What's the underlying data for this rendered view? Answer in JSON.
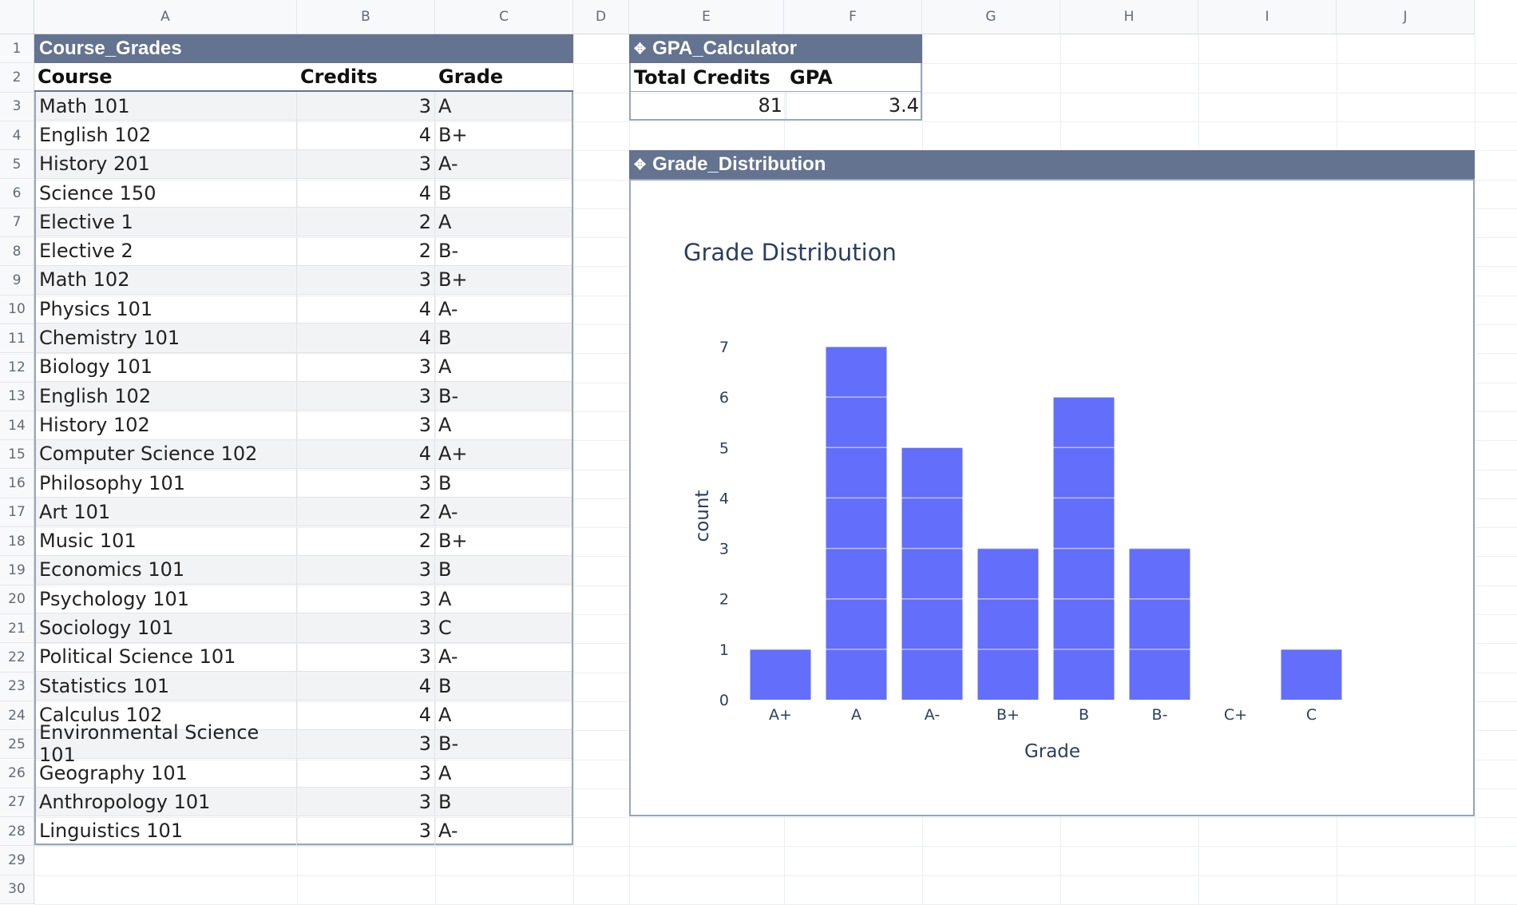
{
  "columns": [
    "A",
    "B",
    "C",
    "D",
    "E",
    "F",
    "G",
    "H",
    "I",
    "J"
  ],
  "rows": [
    "1",
    "2",
    "3",
    "4",
    "5",
    "6",
    "7",
    "8",
    "9",
    "10",
    "11",
    "12",
    "13",
    "14",
    "15",
    "16",
    "17",
    "18",
    "19",
    "20",
    "21",
    "22",
    "23",
    "24",
    "25",
    "26",
    "27",
    "28",
    "29",
    "30"
  ],
  "course_grades": {
    "title": "Course_Grades",
    "headers": {
      "course": "Course",
      "credits": "Credits",
      "grade": "Grade"
    },
    "rows": [
      {
        "course": "Math 101",
        "credits": "3",
        "grade": "A"
      },
      {
        "course": "English 102",
        "credits": "4",
        "grade": "B+"
      },
      {
        "course": "History 201",
        "credits": "3",
        "grade": "A-"
      },
      {
        "course": "Science 150",
        "credits": "4",
        "grade": "B"
      },
      {
        "course": "Elective 1",
        "credits": "2",
        "grade": "A"
      },
      {
        "course": "Elective 2",
        "credits": "2",
        "grade": "B-"
      },
      {
        "course": "Math 102",
        "credits": "3",
        "grade": "B+"
      },
      {
        "course": "Physics 101",
        "credits": "4",
        "grade": "A-"
      },
      {
        "course": "Chemistry 101",
        "credits": "4",
        "grade": "B"
      },
      {
        "course": "Biology 101",
        "credits": "3",
        "grade": "A"
      },
      {
        "course": "English 102",
        "credits": "3",
        "grade": "B-"
      },
      {
        "course": "History 102",
        "credits": "3",
        "grade": "A"
      },
      {
        "course": "Computer Science 102",
        "credits": "4",
        "grade": "A+"
      },
      {
        "course": "Philosophy 101",
        "credits": "3",
        "grade": "B"
      },
      {
        "course": "Art 101",
        "credits": "2",
        "grade": "A-"
      },
      {
        "course": "Music 101",
        "credits": "2",
        "grade": "B+"
      },
      {
        "course": "Economics 101",
        "credits": "3",
        "grade": "B"
      },
      {
        "course": "Psychology 101",
        "credits": "3",
        "grade": "A"
      },
      {
        "course": "Sociology 101",
        "credits": "3",
        "grade": "C"
      },
      {
        "course": "Political Science 101",
        "credits": "3",
        "grade": "A-"
      },
      {
        "course": "Statistics 101",
        "credits": "4",
        "grade": "B"
      },
      {
        "course": "Calculus 102",
        "credits": "4",
        "grade": "A"
      },
      {
        "course": "Environmental Science 101",
        "credits": "3",
        "grade": "B-"
      },
      {
        "course": "Geography 101",
        "credits": "3",
        "grade": "A"
      },
      {
        "course": "Anthropology 101",
        "credits": "3",
        "grade": "B"
      },
      {
        "course": "Linguistics 101",
        "credits": "3",
        "grade": "A-"
      }
    ]
  },
  "gpa_calculator": {
    "title": "GPA_Calculator",
    "headers": {
      "total_credits": "Total Credits",
      "gpa": "GPA"
    },
    "values": {
      "total_credits": "81",
      "gpa": "3.4"
    }
  },
  "grade_distribution": {
    "title": "Grade_Distribution"
  },
  "chart_data": {
    "type": "bar",
    "title": "Grade Distribution",
    "xlabel": "Grade",
    "ylabel": "count",
    "categories": [
      "A+",
      "A",
      "A-",
      "B+",
      "B",
      "B-",
      "C+",
      "C"
    ],
    "values": [
      1,
      7,
      5,
      3,
      6,
      3,
      0,
      1
    ],
    "ylim": [
      0,
      7
    ],
    "yticks": [
      "0",
      "1",
      "2",
      "3",
      "4",
      "5",
      "6",
      "7"
    ],
    "bar_color": "#636efa",
    "grid": true
  },
  "colors": {
    "header_band": "#637390",
    "stripe": "#f2f3f5"
  }
}
